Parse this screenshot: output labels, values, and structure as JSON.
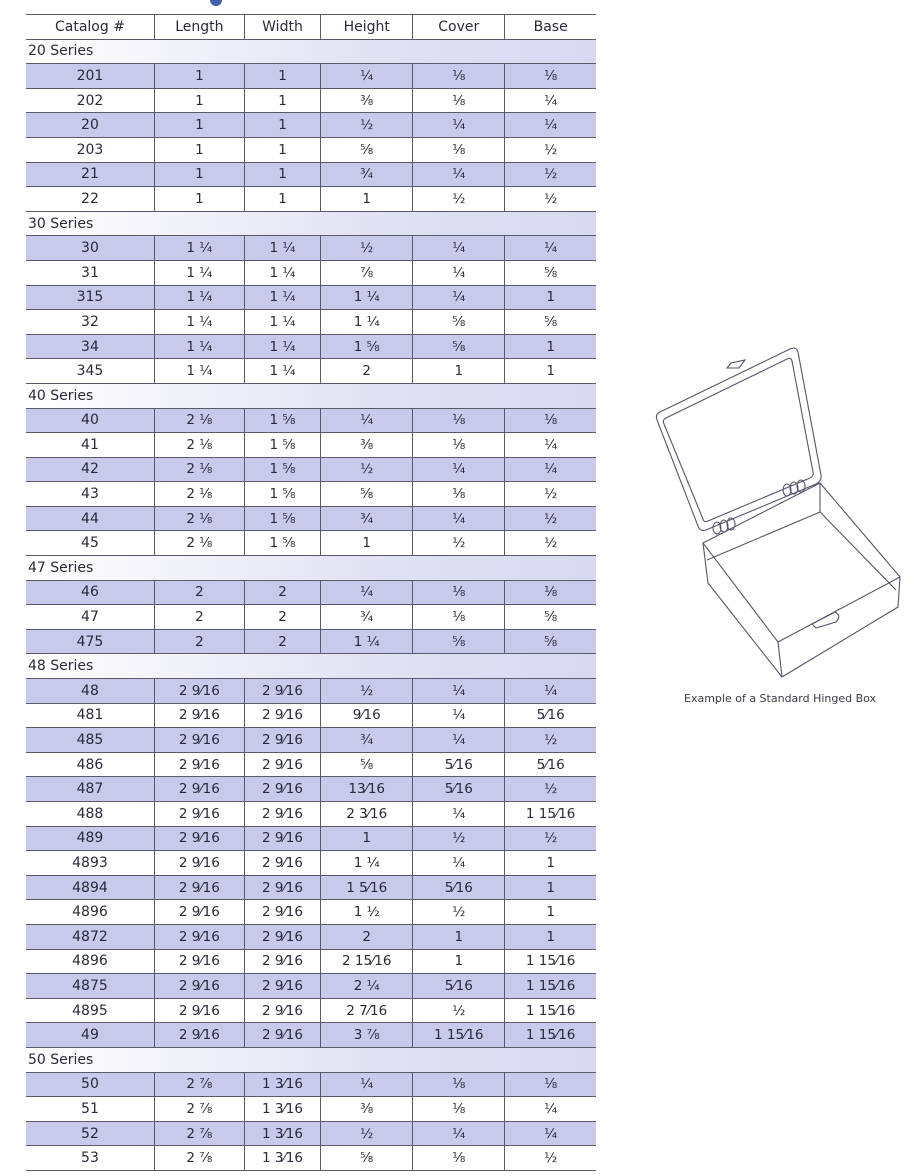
{
  "table": {
    "headers": [
      "Catalog #",
      "Length",
      "Width",
      "Height",
      "Cover",
      "Base"
    ],
    "groups": [
      {
        "series": "20 Series",
        "rows": [
          [
            "201",
            "1",
            "1",
            "¼",
            "⅛",
            "⅛"
          ],
          [
            "202",
            "1",
            "1",
            "⅜",
            "⅛",
            "¼"
          ],
          [
            "20",
            "1",
            "1",
            "½",
            "¼",
            "¼"
          ],
          [
            "203",
            "1",
            "1",
            "⅝",
            "⅛",
            "½"
          ],
          [
            "21",
            "1",
            "1",
            "¾",
            "¼",
            "½"
          ],
          [
            "22",
            "1",
            "1",
            "1",
            "½",
            "½"
          ]
        ]
      },
      {
        "series": "30 Series",
        "rows": [
          [
            "30",
            "1 ¼",
            "1 ¼",
            "½",
            "¼",
            "¼"
          ],
          [
            "31",
            "1 ¼",
            "1 ¼",
            "⅞",
            "¼",
            "⅝"
          ],
          [
            "315",
            "1 ¼",
            "1 ¼",
            "1 ¼",
            "¼",
            "1"
          ],
          [
            "32",
            "1 ¼",
            "1 ¼",
            "1 ¼",
            "⅝",
            "⅝"
          ],
          [
            "34",
            "1 ¼",
            "1 ¼",
            "1 ⅝",
            "⅝",
            "1"
          ],
          [
            "345",
            "1 ¼",
            "1 ¼",
            "2",
            "1",
            "1"
          ]
        ]
      },
      {
        "series": "40 Series",
        "rows": [
          [
            "40",
            "2 ⅛",
            "1 ⅝",
            "¼",
            "⅛",
            "⅛"
          ],
          [
            "41",
            "2 ⅛",
            "1 ⅝",
            "⅜",
            "⅛",
            "¼"
          ],
          [
            "42",
            "2 ⅛",
            "1 ⅝",
            "½",
            "¼",
            "¼"
          ],
          [
            "43",
            "2 ⅛",
            "1 ⅝",
            "⅝",
            "⅛",
            "½"
          ],
          [
            "44",
            "2 ⅛",
            "1 ⅝",
            "¾",
            "¼",
            "½"
          ],
          [
            "45",
            "2 ⅛",
            "1 ⅝",
            "1",
            "½",
            "½"
          ]
        ]
      },
      {
        "series": "47 Series",
        "rows": [
          [
            "46",
            "2",
            "2",
            "¼",
            "⅛",
            "⅛"
          ],
          [
            "47",
            "2",
            "2",
            "¾",
            "⅛",
            "⅝"
          ],
          [
            "475",
            "2",
            "2",
            "1 ¼",
            "⅝",
            "⅝"
          ]
        ]
      },
      {
        "series": "48 Series",
        "rows": [
          [
            "48",
            "2 9⁄16",
            "2 9⁄16",
            "½",
            "¼",
            "¼"
          ],
          [
            "481",
            "2 9⁄16",
            "2 9⁄16",
            "9⁄16",
            "¼",
            "5⁄16"
          ],
          [
            "485",
            "2 9⁄16",
            "2 9⁄16",
            "¾",
            "¼",
            "½"
          ],
          [
            "486",
            "2 9⁄16",
            "2 9⁄16",
            "⅝",
            "5⁄16",
            "5⁄16"
          ],
          [
            "487",
            "2 9⁄16",
            "2 9⁄16",
            "13⁄16",
            "5⁄16",
            "½"
          ],
          [
            "488",
            "2 9⁄16",
            "2 9⁄16",
            "2 3⁄16",
            "¼",
            "1 15⁄16"
          ],
          [
            "489",
            "2 9⁄16",
            "2 9⁄16",
            "1",
            "½",
            "½"
          ],
          [
            "4893",
            "2 9⁄16",
            "2 9⁄16",
            "1 ¼",
            "¼",
            "1"
          ],
          [
            "4894",
            "2 9⁄16",
            "2 9⁄16",
            "1 5⁄16",
            "5⁄16",
            "1"
          ],
          [
            "4896",
            "2 9⁄16",
            "2 9⁄16",
            "1 ½",
            "½",
            "1"
          ],
          [
            "4872",
            "2 9⁄16",
            "2 9⁄16",
            "2",
            "1",
            "1"
          ],
          [
            "4896",
            "2 9⁄16",
            "2 9⁄16",
            "2 15⁄16",
            "1",
            "1 15⁄16"
          ],
          [
            "4875",
            "2 9⁄16",
            "2 9⁄16",
            "2 ¼",
            "5⁄16",
            "1 15⁄16"
          ],
          [
            "4895",
            "2 9⁄16",
            "2 9⁄16",
            "2 7⁄16",
            "½",
            "1 15⁄16"
          ],
          [
            "49",
            "2 9⁄16",
            "2 9⁄16",
            "3 ⅞",
            "1 15⁄16",
            "1 15⁄16"
          ]
        ]
      },
      {
        "series": "50 Series",
        "rows": [
          [
            "50",
            "2 ⅞",
            "1 3⁄16",
            "¼",
            "⅛",
            "⅛"
          ],
          [
            "51",
            "2 ⅞",
            "1 3⁄16",
            "⅜",
            "⅛",
            "¼"
          ],
          [
            "52",
            "2 ⅞",
            "1 3⁄16",
            "½",
            "¼",
            "¼"
          ],
          [
            "53",
            "2 ⅞",
            "1 3⁄16",
            "⅝",
            "⅛",
            "½"
          ]
        ]
      }
    ]
  },
  "figure": {
    "caption": "Example of a Standard Hinged Box",
    "icon": "hinged-box-illustration"
  },
  "colors": {
    "row_shade": "#c9c9ec",
    "rule": "#5a5a68"
  }
}
